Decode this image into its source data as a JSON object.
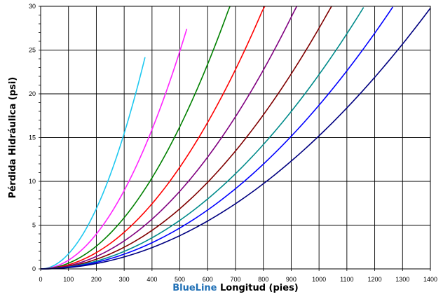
{
  "chart_data": {
    "type": "line",
    "title": "",
    "xlabel_brand": "BlueLine",
    "xlabel_rest": " Longitud (pies)",
    "ylabel": "Pérdida Hidráulica (psi)",
    "xlim": [
      0,
      1400
    ],
    "ylim": [
      0,
      30
    ],
    "x_ticks": [
      0,
      100,
      200,
      300,
      400,
      500,
      600,
      700,
      800,
      900,
      1000,
      1100,
      1200,
      1300,
      1400
    ],
    "y_ticks": [
      0,
      5,
      10,
      15,
      20,
      25,
      30
    ],
    "grid": true,
    "legend": "none",
    "curve_model": "y = k * x^2",
    "series": [
      {
        "color": "#1ec8f0",
        "k": 0.000172,
        "x_end": 375
      },
      {
        "color": "#ff24ff",
        "k": 9.95e-05,
        "x_end": 525
      },
      {
        "color": "#008000",
        "k": 6.5e-05,
        "x_end": 680
      },
      {
        "color": "#ff0000",
        "k": 4.65e-05,
        "x_end": 805
      },
      {
        "color": "#800080",
        "k": 3.55e-05,
        "x_end": 920
      },
      {
        "color": "#800000",
        "k": 2.75e-05,
        "x_end": 1045
      },
      {
        "color": "#008b8b",
        "k": 2.22e-05,
        "x_end": 1160
      },
      {
        "color": "#0000ff",
        "k": 1.87e-05,
        "x_end": 1265
      },
      {
        "color": "#000080",
        "k": 1.52e-05,
        "x_end": 1400
      }
    ]
  }
}
